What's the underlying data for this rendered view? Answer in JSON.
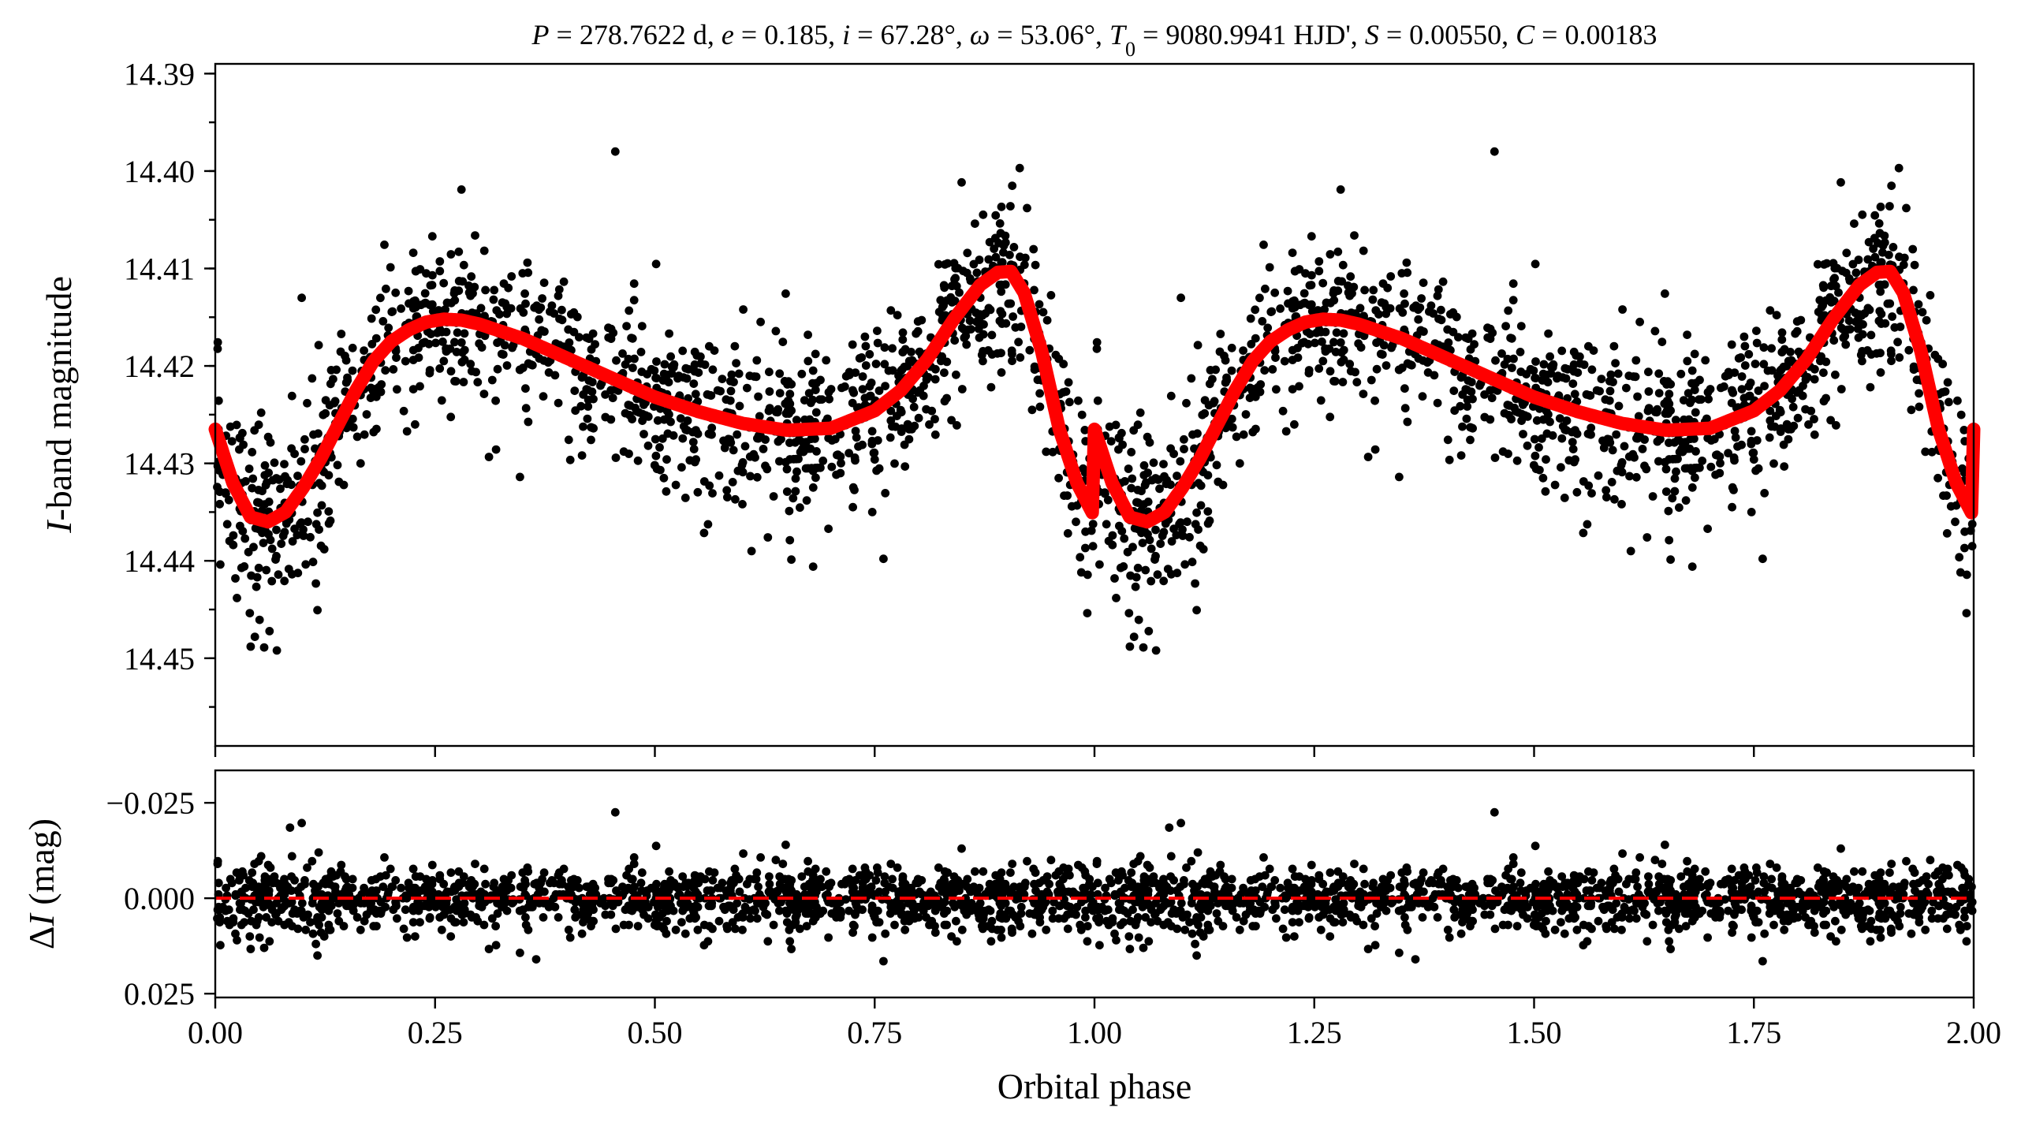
{
  "chart_data": [
    {
      "type": "scatter",
      "panel": "light-curve",
      "title": "P = 278.7622 d, e = 0.185, i = 67.28°, ω = 53.06°, T0 = 9080.9941 HJD', S = 0.00550, C = 0.00183",
      "title_parts": {
        "P": "P",
        "P_val": " = 278.7622 d, ",
        "e": "e",
        "e_val": " = 0.185, ",
        "i": "i",
        "i_val": " = 67.28°, ",
        "w": "ω",
        "w_val": " = 53.06°, ",
        "T": "T",
        "T_sub": "0",
        "T_val": " = 9080.9941 HJD', ",
        "S": "S",
        "S_val": " = 0.00550, ",
        "C": "C",
        "C_val": " = 0.00183"
      },
      "ylabel_italic": "I",
      "ylabel_rest": "-band magnitude",
      "ylim": [
        14.459,
        14.389
      ],
      "y_inverted": true,
      "xlim": [
        0.0,
        2.0
      ],
      "yticks": [
        14.39,
        14.4,
        14.41,
        14.42,
        14.43,
        14.44,
        14.45
      ],
      "ytick_labels": [
        "14.39",
        "14.40",
        "14.41",
        "14.42",
        "14.43",
        "14.44",
        "14.45"
      ],
      "model": {
        "color": "#ff0000",
        "x": [
          0.0,
          0.02,
          0.04,
          0.06,
          0.08,
          0.1,
          0.12,
          0.14,
          0.16,
          0.18,
          0.2,
          0.22,
          0.24,
          0.26,
          0.28,
          0.3,
          0.35,
          0.4,
          0.45,
          0.5,
          0.55,
          0.6,
          0.65,
          0.7,
          0.75,
          0.78,
          0.81,
          0.84,
          0.87,
          0.89,
          0.905,
          0.92,
          0.94,
          0.96,
          0.98,
          1.0,
          1.02,
          1.04,
          1.06,
          1.08,
          1.1,
          1.12,
          1.14,
          1.16,
          1.18,
          1.2,
          1.22,
          1.24,
          1.26,
          1.28,
          1.3,
          1.35,
          1.4,
          1.45,
          1.5,
          1.55,
          1.6,
          1.65,
          1.7,
          1.75,
          1.78,
          1.81,
          1.84,
          1.87,
          1.89,
          1.905,
          1.92,
          1.94,
          1.96,
          1.98,
          2.0
        ],
        "y": [
          14.4265,
          14.432,
          14.4355,
          14.436,
          14.435,
          14.4325,
          14.4295,
          14.426,
          14.4225,
          14.4195,
          14.4175,
          14.4163,
          14.4155,
          14.4152,
          14.4153,
          14.4157,
          14.4172,
          14.4192,
          14.4212,
          14.4232,
          14.4247,
          14.4259,
          14.4266,
          14.4264,
          14.4246,
          14.4225,
          14.4193,
          14.4152,
          14.4117,
          14.4104,
          14.4103,
          14.4125,
          14.4185,
          14.4265,
          14.432,
          14.4355,
          14.436,
          14.435,
          14.4325,
          14.4295,
          14.426,
          14.4225,
          14.4195,
          14.4175,
          14.4163,
          14.4155,
          14.4152,
          14.4153,
          14.4157,
          14.4172,
          14.4192,
          14.4212,
          14.4232,
          14.4247,
          14.4259,
          14.4266,
          14.4264,
          14.4246,
          14.4225,
          14.4193,
          14.4152,
          14.4117,
          14.4104,
          14.4103,
          14.4125,
          14.4185,
          14.4265,
          14.432,
          14.4355,
          14.436,
          14.4265
        ]
      },
      "outliers": [
        {
          "x": 0.455,
          "y": 14.398
        },
        {
          "x": 1.455,
          "y": 14.398
        },
        {
          "x": 0.915,
          "y": 14.3997
        },
        {
          "x": 1.915,
          "y": 14.3997
        },
        {
          "x": 0.28,
          "y": 14.4019
        },
        {
          "x": 1.28,
          "y": 14.4019
        },
        {
          "x": 0.07,
          "y": 14.4492
        },
        {
          "x": 1.07,
          "y": 14.4492
        },
        {
          "x": 0.045,
          "y": 14.4478
        },
        {
          "x": 1.045,
          "y": 14.4478
        },
        {
          "x": 0.68,
          "y": 14.4406
        },
        {
          "x": 1.68,
          "y": 14.4406
        },
        {
          "x": 0.76,
          "y": 14.4398
        },
        {
          "x": 1.76,
          "y": 14.4398
        },
        {
          "x": 0.61,
          "y": 14.439
        },
        {
          "x": 1.61,
          "y": 14.439
        }
      ],
      "scatter_rule": "generated about the model with magnitude noise (std ~0.0045 mag, extra near eclipse), 1280 points over phase 0-1, repeated at phase+1"
    },
    {
      "type": "scatter",
      "panel": "residuals",
      "xlabel": "Orbital phase",
      "ylabel_delta": "Δ",
      "ylabel_italic": "I",
      "ylabel_rest": " (mag)",
      "xlim": [
        0.0,
        2.0
      ],
      "ylim": [
        0.026,
        -0.0335
      ],
      "y_inverted": true,
      "yticks": [
        -0.025,
        0.0,
        0.025
      ],
      "ytick_labels": [
        "−0.025",
        "0.000",
        "0.025"
      ],
      "xticks": [
        0.0,
        0.25,
        0.5,
        0.75,
        1.0,
        1.25,
        1.5,
        1.75,
        2.0
      ],
      "xtick_labels": [
        "0.00",
        "0.25",
        "0.50",
        "0.75",
        "1.00",
        "1.25",
        "1.50",
        "1.75",
        "2.00"
      ],
      "zero_line": {
        "y": 0.0,
        "color": "#ff0000",
        "style": "dashed"
      },
      "outliers": [
        {
          "x": 0.455,
          "y": -0.0225
        },
        {
          "x": 1.455,
          "y": -0.0225
        },
        {
          "x": 0.085,
          "y": -0.0185
        },
        {
          "x": 1.085,
          "y": -0.0185
        },
        {
          "x": 0.76,
          "y": 0.0165
        },
        {
          "x": 1.76,
          "y": 0.0165
        },
        {
          "x": 0.365,
          "y": 0.016
        },
        {
          "x": 1.365,
          "y": 0.016
        }
      ],
      "scatter_rule": "residual = observed - model, std ~0.0047 mag, same phases as light-curve panel"
    }
  ]
}
